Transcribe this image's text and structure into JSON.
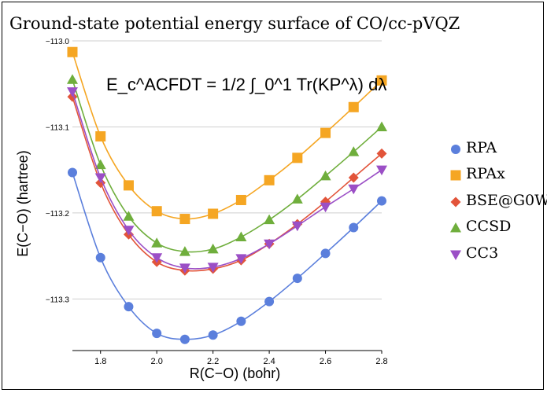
{
  "chart_data": {
    "type": "line",
    "title": "Ground-state potential energy surface of CO/cc-pVQZ",
    "formula": "E_c^ACFDT = 1/2 ∫_0^1 Tr(KP^λ) dλ",
    "xlabel": "R(C−O) (bohr)",
    "ylabel": "E(C−O) (hartree)",
    "xlim": [
      1.7,
      2.8
    ],
    "ylim": [
      -113.36,
      -113.0
    ],
    "x_ticks": [
      1.8,
      2.0,
      2.2,
      2.4,
      2.6,
      2.8
    ],
    "x_tick_labels": [
      "1.8",
      "2.0",
      "2.2",
      "2.4",
      "2.6",
      "2.8"
    ],
    "y_ticks": [
      -113.0,
      -113.1,
      -113.2,
      -113.3
    ],
    "y_tick_labels": [
      "−113.0",
      "−113.1",
      "−113.2",
      "−113.3"
    ],
    "grid": "horizontal",
    "legend_position": "right",
    "x": [
      1.7,
      1.8,
      1.9,
      2.0,
      2.1,
      2.2,
      2.3,
      2.4,
      2.5,
      2.6,
      2.7,
      2.8
    ],
    "series": [
      {
        "name": "RPA",
        "marker": "circle",
        "color": "#5b7fdc",
        "values": [
          -113.153,
          -113.252,
          -113.309,
          -113.34,
          -113.347,
          -113.342,
          -113.326,
          -113.303,
          -113.276,
          -113.247,
          -113.217,
          -113.186
        ]
      },
      {
        "name": "RPAx",
        "marker": "square",
        "color": "#f5a623",
        "values": [
          -113.013,
          -113.111,
          -113.168,
          -113.198,
          -113.207,
          -113.201,
          -113.185,
          -113.162,
          -113.136,
          -113.107,
          -113.077,
          -113.046
        ]
      },
      {
        "name": "BSE@G0W0",
        "marker": "diamond",
        "color": "#e2543a",
        "values": [
          -113.065,
          -113.165,
          -113.225,
          -113.257,
          -113.267,
          -113.265,
          -113.255,
          -113.236,
          -113.213,
          -113.187,
          -113.159,
          -113.131
        ]
      },
      {
        "name": "CCSD",
        "marker": "triangle-up",
        "color": "#6fae3c",
        "values": [
          -113.045,
          -113.144,
          -113.204,
          -113.235,
          -113.245,
          -113.242,
          -113.228,
          -113.208,
          -113.184,
          -113.157,
          -113.129,
          -113.1
        ]
      },
      {
        "name": "CC3",
        "marker": "triangle-down",
        "color": "#9b4fc6",
        "values": [
          -113.059,
          -113.159,
          -113.22,
          -113.252,
          -113.264,
          -113.263,
          -113.253,
          -113.236,
          -113.215,
          -113.193,
          -113.172,
          -113.15
        ]
      }
    ]
  }
}
